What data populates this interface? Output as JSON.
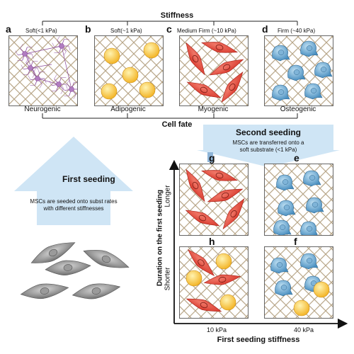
{
  "header": {
    "stiffness_title": "Stiffness",
    "cell_fate_title": "Cell fate"
  },
  "top_panels": [
    {
      "letter": "a",
      "stiffness": "Soft(<1 kPa)",
      "fate": "Neurogenic"
    },
    {
      "letter": "b",
      "stiffness": "Soft(~1 kPa)",
      "fate": "Adipogenic"
    },
    {
      "letter": "c",
      "stiffness": "Medium Firm (~10 kPa)",
      "fate": "Myogenic"
    },
    {
      "letter": "d",
      "stiffness": "Firm (~40 kPa)",
      "fate": "Osteogenic"
    }
  ],
  "first_seeding": {
    "title": "First seeding",
    "text_line1": "MSCs are seeded onto subst rates",
    "text_line2": "with different stiffnesses"
  },
  "second_seeding": {
    "title": "Second seeding",
    "text_line1": "MSCs are transferred onto a",
    "text_line2": "soft substrate (<1 kPa)"
  },
  "bottom_panels": [
    {
      "letter": "g"
    },
    {
      "letter": "e"
    },
    {
      "letter": "h"
    },
    {
      "letter": "f"
    }
  ],
  "axes": {
    "y_title": "Duration on the first seeding",
    "y_longer": "Longer",
    "y_shorter": "Shorter",
    "x_title": "First seeding stiffness",
    "x_tick_1": "10 kPa",
    "x_tick_2": "40 kPa"
  },
  "colors": {
    "neuron": "#8a4a9a",
    "fat": "#f3b528",
    "muscle": "#d93a2e",
    "bone": "#4a8fc0",
    "arrow": "#cfe5f5",
    "grid": "#b9a78a"
  }
}
